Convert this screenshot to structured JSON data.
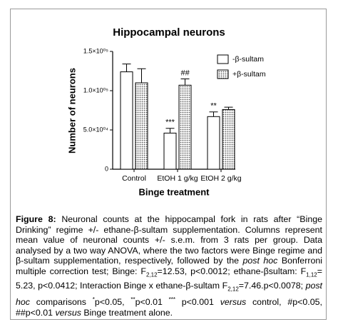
{
  "chart_data": {
    "type": "bar",
    "title": "Hippocampal neurons",
    "y_label": "Number of neurons",
    "x_label": "Binge treatment",
    "categories": [
      "Control",
      "EtOH 1 g/kg",
      "EtOH 2 g/kg"
    ],
    "series": [
      {
        "name": "-β-sultam",
        "color": "#ffffff",
        "values": [
          124000,
          46000,
          67000
        ],
        "errors": [
          10000,
          6000,
          6000
        ],
        "annotations": [
          null,
          "***",
          "**"
        ]
      },
      {
        "name": "+β-sultam",
        "color": "#8a8a8a",
        "fill_pattern": "dots",
        "values": [
          110000,
          107000,
          76000
        ],
        "errors": [
          18000,
          8000,
          3000
        ],
        "annotations": [
          null,
          "##",
          null
        ]
      }
    ],
    "ylim": [
      0,
      150000
    ],
    "yticks": [
      0,
      {
        "value": 50000,
        "label": "5.0×10⁰⁴"
      },
      {
        "value": 100000,
        "label": "1.0×10⁰⁵"
      },
      {
        "value": 150000,
        "label": "1.5×10⁰⁵"
      }
    ],
    "legend": "upper right"
  },
  "caption": [
    {
      "text": "Figure 8:",
      "style": "bold"
    },
    {
      "text": " Neuronal counts at the hippocampal fork in rats after “Binge Drinking” regime +/- ethane-β-sultam supplementation. Columns represent mean value of neuronal counts +/- s.e.m. from 3 rats per group. Data analysed by a two way ANOVA, where the two factors were Binge regime and β-sultam supplementation, respectively, followed by the "
    },
    {
      "text": "post hoc",
      "style": "italic"
    },
    {
      "text": " Bonferroni multiple correction test; Binge: F"
    },
    {
      "text": "2,12",
      "style": "sub"
    },
    {
      "text": "=12.53, p<0.0012; ethane-βsultam: F"
    },
    {
      "text": "1,12",
      "style": "sub"
    },
    {
      "text": "= 5.23, p<0.0412; Interaction Binge x ethane-β-sultam F"
    },
    {
      "text": "2,12",
      "style": "sub"
    },
    {
      "text": "=7.46.p<0.0078; "
    },
    {
      "text": "post hoc",
      "style": "italic"
    },
    {
      "text": " comparisons "
    },
    {
      "text": "*",
      "style": "sup"
    },
    {
      "text": "p<0.05, "
    },
    {
      "text": "**",
      "style": "sup"
    },
    {
      "text": "p<0.01 "
    },
    {
      "text": "***",
      "style": "sup"
    },
    {
      "text": " p<0.001 "
    },
    {
      "text": "versus",
      "style": "italic"
    },
    {
      "text": " control, #p<0.05, ##p<0.01 "
    },
    {
      "text": "versus",
      "style": "italic"
    },
    {
      "text": " Binge treatment alone."
    }
  ]
}
